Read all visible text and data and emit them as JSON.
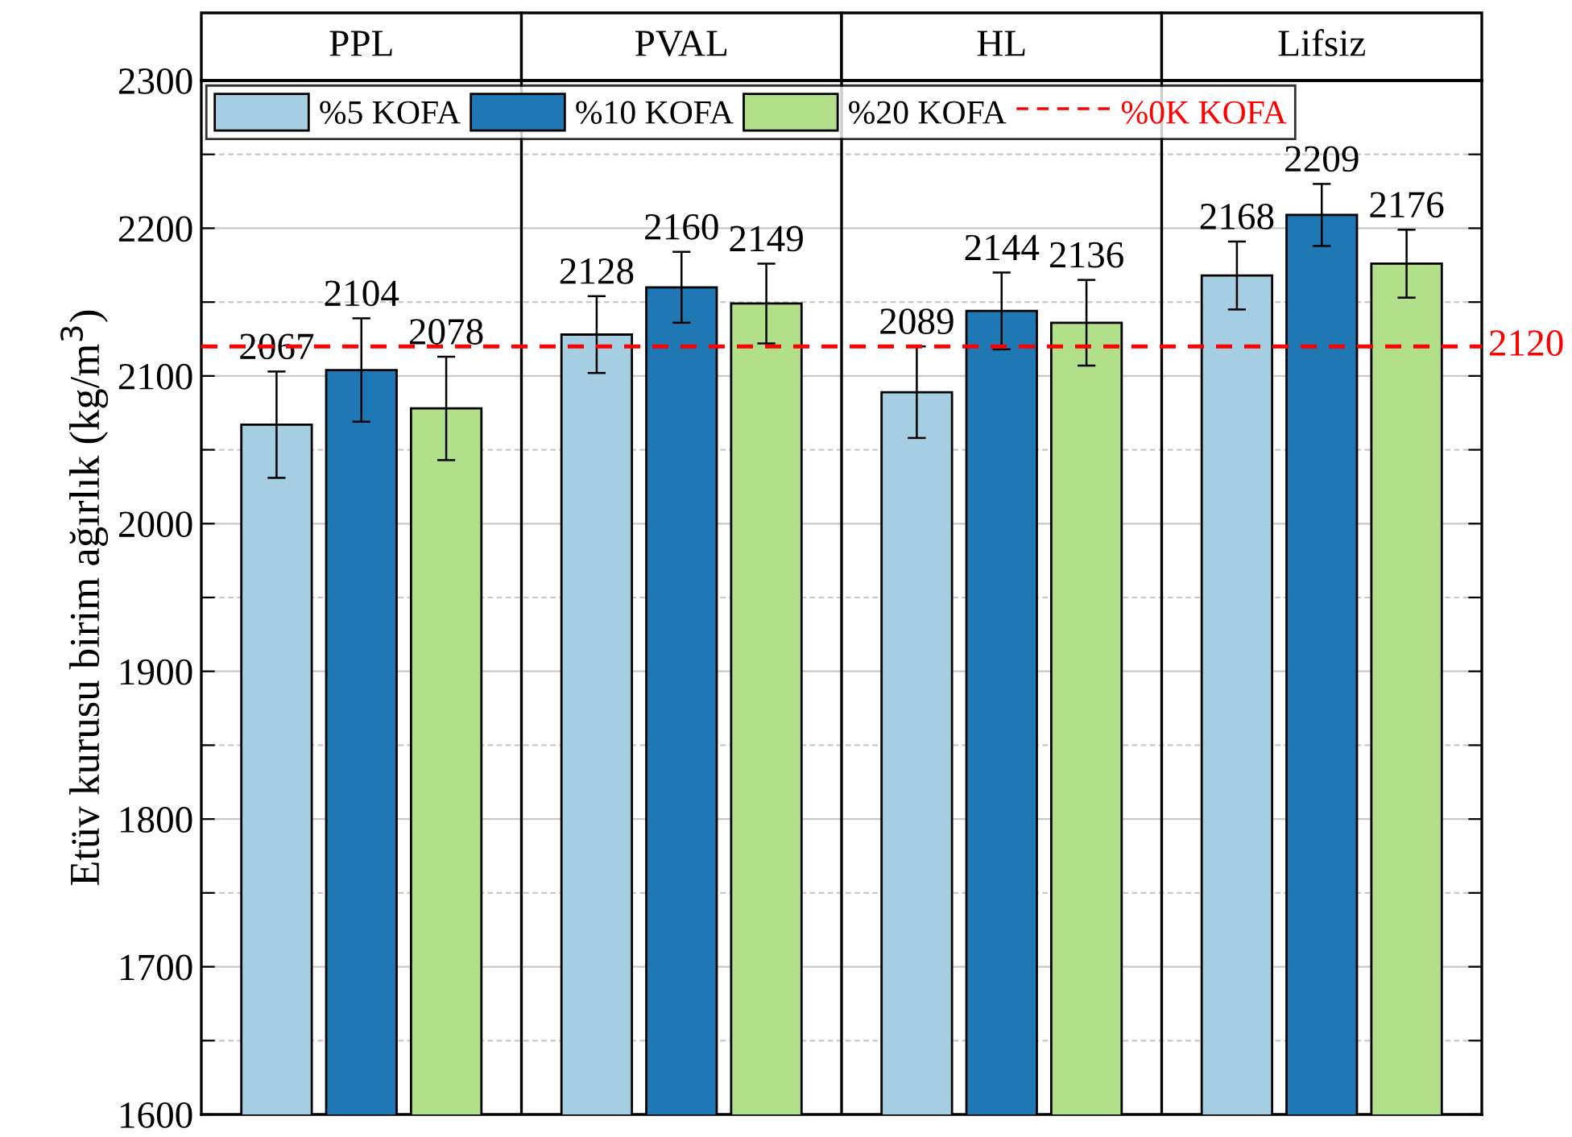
{
  "chart_data": {
    "type": "bar",
    "ylabel": "Etüv kurusu birim ağırlık (kg/m$^{3}$)",
    "categories": [
      "PPL",
      "PVAL",
      "HL",
      "Lifsiz"
    ],
    "series": [
      {
        "name": "%5 KOFA",
        "color": "#a6cee3",
        "values": [
          2067,
          2128,
          2089,
          2168
        ],
        "errors": [
          36,
          26,
          31,
          23
        ]
      },
      {
        "name": "%10 KOFA",
        "color": "#1f78b4",
        "values": [
          2104,
          2160,
          2144,
          2209
        ],
        "errors": [
          35,
          24,
          26,
          21
        ]
      },
      {
        "name": "%20 KOFA",
        "color": "#b2df8a",
        "values": [
          2078,
          2149,
          2136,
          2176
        ],
        "errors": [
          35,
          27,
          29,
          23
        ]
      }
    ],
    "ylim": [
      1600,
      2300
    ],
    "yticks": [
      1600,
      {
        "value": 1650,
        "label": null
      },
      1700,
      {
        "value": 1750,
        "label": null
      },
      1800,
      {
        "value": 1850,
        "label": null
      },
      1900,
      {
        "value": 1950,
        "label": null
      },
      2000,
      {
        "value": 2050,
        "label": null
      },
      2100,
      {
        "value": 2150,
        "label": null
      },
      2200,
      {
        "value": 2250,
        "label": null
      },
      2300
    ],
    "grid": "y",
    "ref_lines": [
      {
        "axis": "y",
        "value": 2120,
        "label": "%0K KOFA",
        "color": "#ff0000",
        "line_style": "dashed"
      }
    ],
    "annotations": [
      "2120"
    ],
    "data_labels": true,
    "legend": "top left"
  }
}
